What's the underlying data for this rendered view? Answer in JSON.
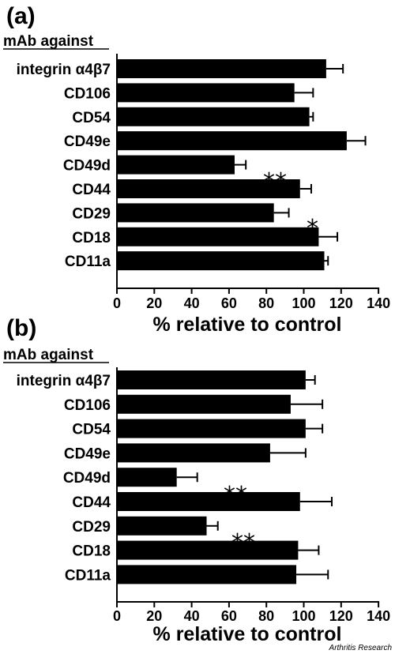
{
  "chart_data": [
    {
      "type": "bar",
      "orientation": "horizontal",
      "panel_label": "(a)",
      "heading": "mAb against",
      "categories": [
        "integrin α4β7",
        "CD106",
        "CD54",
        "CD49e",
        "CD49d",
        "CD44",
        "CD29",
        "CD18",
        "CD11a"
      ],
      "values": [
        112,
        95,
        103,
        123,
        63,
        98,
        84,
        108,
        111
      ],
      "errors": [
        9,
        10,
        2,
        10,
        6,
        6,
        8,
        10,
        2
      ],
      "significance": [
        "",
        "",
        "",
        "",
        "**",
        "",
        "*",
        "",
        ""
      ],
      "xlabel": "% relative to control",
      "xlim": [
        0,
        140
      ],
      "xticks": [
        0,
        20,
        40,
        60,
        80,
        100,
        120,
        140
      ],
      "grid": false,
      "legend": "none",
      "bar_color": "#000000"
    },
    {
      "type": "bar",
      "orientation": "horizontal",
      "panel_label": "(b)",
      "heading": "mAb against",
      "categories": [
        "integrin α4β7",
        "CD106",
        "CD54",
        "CD49e",
        "CD49d",
        "CD44",
        "CD29",
        "CD18",
        "CD11a"
      ],
      "values": [
        101,
        93,
        101,
        82,
        32,
        98,
        48,
        97,
        96
      ],
      "errors": [
        5,
        17,
        9,
        19,
        11,
        17,
        6,
        11,
        17
      ],
      "significance": [
        "",
        "",
        "",
        "",
        "**",
        "",
        "**",
        "",
        ""
      ],
      "xlabel": "% relative to control",
      "xlim": [
        0,
        140
      ],
      "xticks": [
        0,
        20,
        40,
        60,
        80,
        100,
        120,
        140
      ],
      "grid": false,
      "legend": "none",
      "bar_color": "#000000"
    }
  ],
  "credit": "Arthritis Research"
}
